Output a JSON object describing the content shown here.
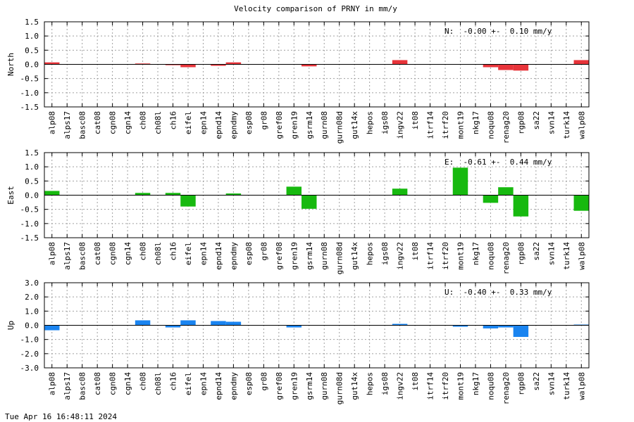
{
  "footer": {
    "timestamp": "Tue Apr 16 16:48:11 2024"
  },
  "chart_data": {
    "type": "bar",
    "title": "Velocity comparison of PRNY in mm/y",
    "categories": [
      "alp08",
      "alps17",
      "basc08",
      "cat08",
      "cgn08",
      "cgn14",
      "ch08",
      "ch08l",
      "ch16",
      "eifel",
      "epn14",
      "epnd14",
      "epndmy",
      "esp08",
      "gr08",
      "gref08",
      "gren19",
      "gsrm14",
      "gurn08",
      "gurn08d",
      "gut14x",
      "hepos",
      "igs08",
      "ingv22",
      "it08",
      "itrf14",
      "itrf20",
      "mont19",
      "nkg17",
      "noqu08",
      "renag20",
      "rgp08",
      "sa22",
      "svn14",
      "turk14",
      "walp08"
    ],
    "grid": true,
    "panels": [
      {
        "ylabel": "North",
        "ylim": [
          -1.5,
          1.5
        ],
        "yticks": [
          -1.5,
          -1.0,
          -0.5,
          0.0,
          0.5,
          1.0,
          1.5
        ],
        "yticklabels": [
          "-1.5",
          "-1.0",
          "-0.5",
          "0.0",
          "0.5",
          "1.0",
          "1.5"
        ],
        "color": "#e8343a",
        "annotation": "N:  -0.00 +-  0.10 mm/y",
        "values": [
          0.07,
          0,
          0,
          0,
          0,
          0,
          0.03,
          0,
          -0.03,
          -0.1,
          0,
          -0.05,
          0.07,
          0,
          0,
          0,
          0,
          -0.07,
          0,
          0,
          0,
          0,
          0,
          0.15,
          0,
          0,
          0,
          0,
          0,
          -0.1,
          -0.2,
          -0.22,
          0,
          0,
          0,
          0.15
        ]
      },
      {
        "ylabel": "East",
        "ylim": [
          -1.5,
          1.5
        ],
        "yticks": [
          -1.5,
          -1.0,
          -0.5,
          0.0,
          0.5,
          1.0,
          1.5
        ],
        "yticklabels": [
          "-1.5",
          "-1.0",
          "-0.5",
          "0.0",
          "0.5",
          "1.0",
          "1.5"
        ],
        "color": "#17b90f",
        "annotation": "E:  -0.61 +-  0.44 mm/y",
        "values": [
          0.15,
          0,
          0,
          0,
          0,
          0,
          0.08,
          0,
          0.08,
          -0.4,
          0,
          0,
          0.06,
          0,
          0,
          0,
          0.3,
          -0.48,
          0,
          0,
          0,
          0,
          0,
          0.23,
          0,
          0,
          0,
          0.97,
          0,
          -0.27,
          0.28,
          -0.75,
          0,
          0,
          0,
          -0.55
        ]
      },
      {
        "ylabel": "Up",
        "ylim": [
          -3.0,
          3.0
        ],
        "yticks": [
          -3.0,
          -2.0,
          -1.0,
          0.0,
          1.0,
          2.0,
          3.0
        ],
        "yticklabels": [
          "-3.0",
          "-2.0",
          "-1.0",
          "0.0",
          "1.0",
          "2.0",
          "3.0"
        ],
        "color": "#1a84f0",
        "annotation": "U:  -0.40 +-  0.33 mm/y",
        "values": [
          -0.35,
          0,
          0,
          0,
          0,
          0,
          0.35,
          0,
          -0.15,
          0.35,
          0,
          0.3,
          0.25,
          0,
          0,
          0,
          -0.15,
          0,
          0,
          0,
          0,
          0,
          0,
          0.1,
          0,
          0,
          0,
          -0.1,
          0,
          -0.22,
          -0.15,
          -0.82,
          0,
          0,
          0,
          0.05
        ]
      }
    ]
  }
}
